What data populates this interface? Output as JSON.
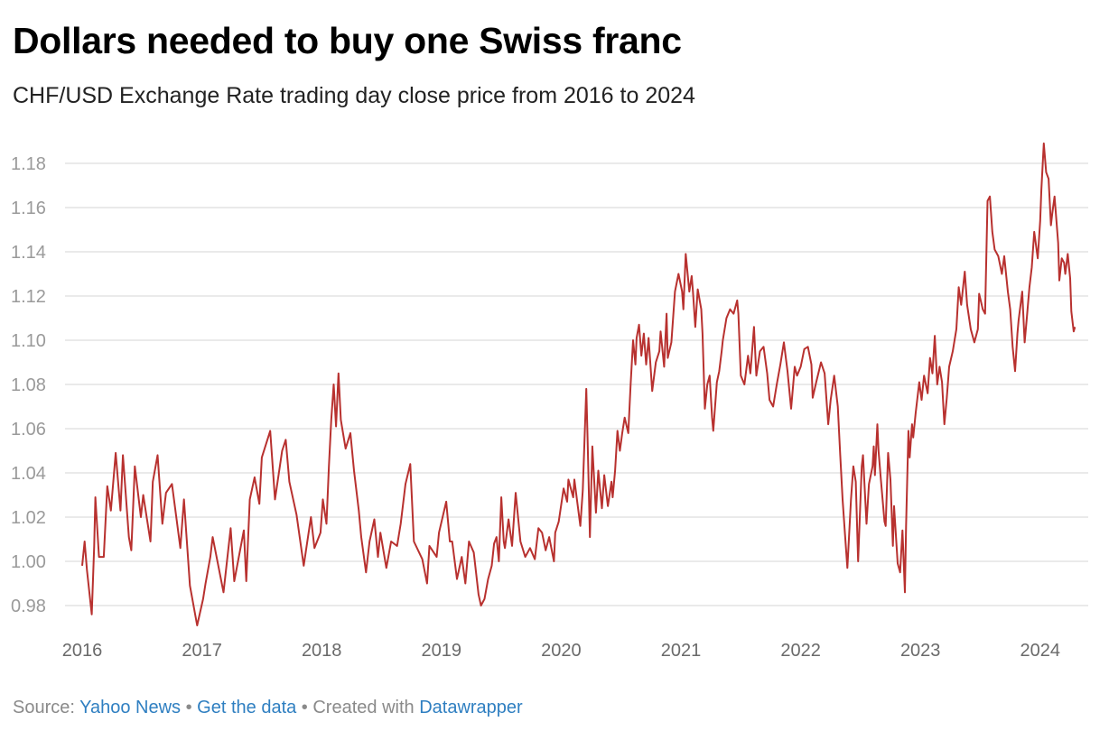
{
  "title": "Dollars needed to buy one Swiss franc",
  "subtitle": "CHF/USD Exchange Rate trading day close price from 2016 to 2024",
  "footer": {
    "source_label": "Source: ",
    "source_link": "Yahoo News",
    "sep1": " • ",
    "data_link": "Get the data",
    "sep2": " • Created with ",
    "tool_link": "Datawrapper"
  },
  "colors": {
    "line": "#b8312f",
    "grid": "#e3e3e3",
    "link": "#2f7fc1"
  },
  "chart_data": {
    "type": "line",
    "title": "Dollars needed to buy one Swiss franc",
    "subtitle": "CHF/USD Exchange Rate trading day close price from 2016 to 2024",
    "xlabel": "",
    "ylabel": "",
    "x_unit": "year",
    "xlim": [
      2016,
      2024.3
    ],
    "ylim": [
      0.97,
      1.19
    ],
    "yticks": [
      "0.98",
      "1.00",
      "1.02",
      "1.04",
      "1.06",
      "1.08",
      "1.10",
      "1.12",
      "1.14",
      "1.16",
      "1.18"
    ],
    "xticks": [
      "2016",
      "2017",
      "2018",
      "2019",
      "2020",
      "2021",
      "2022",
      "2023",
      "2024"
    ],
    "grid": "horizontal",
    "legend": "none",
    "points": [
      [
        2016.0,
        0.998
      ],
      [
        2016.02,
        1.009
      ],
      [
        2016.04,
        0.996
      ],
      [
        2016.08,
        0.976
      ],
      [
        2016.1,
        1.007
      ],
      [
        2016.11,
        1.029
      ],
      [
        2016.14,
        1.002
      ],
      [
        2016.18,
        1.002
      ],
      [
        2016.21,
        1.034
      ],
      [
        2016.24,
        1.023
      ],
      [
        2016.28,
        1.049
      ],
      [
        2016.32,
        1.023
      ],
      [
        2016.34,
        1.048
      ],
      [
        2016.39,
        1.011
      ],
      [
        2016.41,
        1.005
      ],
      [
        2016.44,
        1.043
      ],
      [
        2016.49,
        1.02
      ],
      [
        2016.51,
        1.03
      ],
      [
        2016.57,
        1.009
      ],
      [
        2016.59,
        1.036
      ],
      [
        2016.63,
        1.048
      ],
      [
        2016.67,
        1.017
      ],
      [
        2016.7,
        1.031
      ],
      [
        2016.75,
        1.035
      ],
      [
        2016.82,
        1.006
      ],
      [
        2016.85,
        1.028
      ],
      [
        2016.9,
        0.989
      ],
      [
        2016.96,
        0.971
      ],
      [
        2017.01,
        0.983
      ],
      [
        2017.03,
        0.99
      ],
      [
        2017.07,
        1.002
      ],
      [
        2017.09,
        1.011
      ],
      [
        2017.18,
        0.986
      ],
      [
        2017.24,
        1.015
      ],
      [
        2017.27,
        0.991
      ],
      [
        2017.35,
        1.014
      ],
      [
        2017.37,
        0.991
      ],
      [
        2017.4,
        1.028
      ],
      [
        2017.44,
        1.038
      ],
      [
        2017.48,
        1.026
      ],
      [
        2017.5,
        1.047
      ],
      [
        2017.57,
        1.059
      ],
      [
        2017.61,
        1.028
      ],
      [
        2017.67,
        1.05
      ],
      [
        2017.7,
        1.055
      ],
      [
        2017.73,
        1.036
      ],
      [
        2017.79,
        1.021
      ],
      [
        2017.85,
        0.998
      ],
      [
        2017.91,
        1.02
      ],
      [
        2017.94,
        1.006
      ],
      [
        2017.99,
        1.013
      ],
      [
        2018.01,
        1.028
      ],
      [
        2018.04,
        1.017
      ],
      [
        2018.06,
        1.043
      ],
      [
        2018.08,
        1.064
      ],
      [
        2018.1,
        1.08
      ],
      [
        2018.12,
        1.061
      ],
      [
        2018.14,
        1.085
      ],
      [
        2018.16,
        1.064
      ],
      [
        2018.2,
        1.051
      ],
      [
        2018.24,
        1.058
      ],
      [
        2018.27,
        1.041
      ],
      [
        2018.31,
        1.023
      ],
      [
        2018.33,
        1.011
      ],
      [
        2018.37,
        0.995
      ],
      [
        2018.4,
        1.009
      ],
      [
        2018.44,
        1.019
      ],
      [
        2018.47,
        1.002
      ],
      [
        2018.49,
        1.013
      ],
      [
        2018.54,
        0.997
      ],
      [
        2018.58,
        1.009
      ],
      [
        2018.63,
        1.007
      ],
      [
        2018.66,
        1.017
      ],
      [
        2018.7,
        1.035
      ],
      [
        2018.74,
        1.044
      ],
      [
        2018.77,
        1.009
      ],
      [
        2018.84,
        1.001
      ],
      [
        2018.88,
        0.99
      ],
      [
        2018.9,
        1.007
      ],
      [
        2018.96,
        1.002
      ],
      [
        2018.98,
        1.013
      ],
      [
        2019.04,
        1.027
      ],
      [
        2019.07,
        1.009
      ],
      [
        2019.09,
        1.009
      ],
      [
        2019.13,
        0.992
      ],
      [
        2019.17,
        1.002
      ],
      [
        2019.2,
        0.99
      ],
      [
        2019.23,
        1.009
      ],
      [
        2019.27,
        1.004
      ],
      [
        2019.31,
        0.985
      ],
      [
        2019.33,
        0.98
      ],
      [
        2019.36,
        0.983
      ],
      [
        2019.39,
        0.992
      ],
      [
        2019.42,
        0.998
      ],
      [
        2019.44,
        1.008
      ],
      [
        2019.46,
        1.011
      ],
      [
        2019.48,
        1.0
      ],
      [
        2019.5,
        1.029
      ],
      [
        2019.52,
        1.009
      ],
      [
        2019.53,
        1.006
      ],
      [
        2019.56,
        1.019
      ],
      [
        2019.59,
        1.007
      ],
      [
        2019.62,
        1.031
      ],
      [
        2019.66,
        1.009
      ],
      [
        2019.7,
        1.002
      ],
      [
        2019.74,
        1.006
      ],
      [
        2019.78,
        1.001
      ],
      [
        2019.81,
        1.015
      ],
      [
        2019.84,
        1.013
      ],
      [
        2019.87,
        1.005
      ],
      [
        2019.9,
        1.011
      ],
      [
        2019.94,
        1.0
      ],
      [
        2019.95,
        1.013
      ],
      [
        2019.98,
        1.018
      ],
      [
        2020.02,
        1.033
      ],
      [
        2020.05,
        1.027
      ],
      [
        2020.06,
        1.037
      ],
      [
        2020.1,
        1.029
      ],
      [
        2020.11,
        1.037
      ],
      [
        2020.16,
        1.016
      ],
      [
        2020.18,
        1.032
      ],
      [
        2020.21,
        1.078
      ],
      [
        2020.22,
        1.056
      ],
      [
        2020.24,
        1.011
      ],
      [
        2020.26,
        1.052
      ],
      [
        2020.29,
        1.022
      ],
      [
        2020.31,
        1.041
      ],
      [
        2020.34,
        1.024
      ],
      [
        2020.36,
        1.039
      ],
      [
        2020.39,
        1.025
      ],
      [
        2020.42,
        1.036
      ],
      [
        2020.43,
        1.029
      ],
      [
        2020.45,
        1.041
      ],
      [
        2020.47,
        1.059
      ],
      [
        2020.49,
        1.05
      ],
      [
        2020.51,
        1.058
      ],
      [
        2020.53,
        1.065
      ],
      [
        2020.56,
        1.058
      ],
      [
        2020.58,
        1.08
      ],
      [
        2020.6,
        1.1
      ],
      [
        2020.62,
        1.089
      ],
      [
        2020.63,
        1.101
      ],
      [
        2020.65,
        1.107
      ],
      [
        2020.67,
        1.093
      ],
      [
        2020.69,
        1.103
      ],
      [
        2020.71,
        1.089
      ],
      [
        2020.73,
        1.101
      ],
      [
        2020.76,
        1.077
      ],
      [
        2020.79,
        1.09
      ],
      [
        2020.82,
        1.095
      ],
      [
        2020.83,
        1.104
      ],
      [
        2020.86,
        1.088
      ],
      [
        2020.88,
        1.112
      ],
      [
        2020.89,
        1.092
      ],
      [
        2020.92,
        1.099
      ],
      [
        2020.95,
        1.122
      ],
      [
        2020.98,
        1.13
      ],
      [
        2021.01,
        1.122
      ],
      [
        2021.02,
        1.114
      ],
      [
        2021.04,
        1.139
      ],
      [
        2021.07,
        1.122
      ],
      [
        2021.09,
        1.129
      ],
      [
        2021.1,
        1.122
      ],
      [
        2021.12,
        1.106
      ],
      [
        2021.14,
        1.123
      ],
      [
        2021.17,
        1.114
      ],
      [
        2021.18,
        1.103
      ],
      [
        2021.2,
        1.069
      ],
      [
        2021.22,
        1.08
      ],
      [
        2021.24,
        1.084
      ],
      [
        2021.26,
        1.065
      ],
      [
        2021.27,
        1.059
      ],
      [
        2021.3,
        1.081
      ],
      [
        2021.32,
        1.086
      ],
      [
        2021.34,
        1.095
      ],
      [
        2021.35,
        1.1
      ],
      [
        2021.38,
        1.11
      ],
      [
        2021.41,
        1.114
      ],
      [
        2021.44,
        1.112
      ],
      [
        2021.47,
        1.118
      ],
      [
        2021.48,
        1.112
      ],
      [
        2021.5,
        1.084
      ],
      [
        2021.53,
        1.08
      ],
      [
        2021.56,
        1.093
      ],
      [
        2021.58,
        1.085
      ],
      [
        2021.61,
        1.106
      ],
      [
        2021.63,
        1.084
      ],
      [
        2021.66,
        1.095
      ],
      [
        2021.69,
        1.097
      ],
      [
        2021.72,
        1.085
      ],
      [
        2021.74,
        1.073
      ],
      [
        2021.77,
        1.07
      ],
      [
        2021.8,
        1.08
      ],
      [
        2021.83,
        1.089
      ],
      [
        2021.86,
        1.099
      ],
      [
        2021.89,
        1.086
      ],
      [
        2021.92,
        1.069
      ],
      [
        2021.95,
        1.088
      ],
      [
        2021.97,
        1.084
      ],
      [
        2022.0,
        1.088
      ],
      [
        2022.03,
        1.096
      ],
      [
        2022.06,
        1.097
      ],
      [
        2022.09,
        1.089
      ],
      [
        2022.1,
        1.074
      ],
      [
        2022.13,
        1.081
      ],
      [
        2022.17,
        1.09
      ],
      [
        2022.2,
        1.085
      ],
      [
        2022.23,
        1.062
      ],
      [
        2022.25,
        1.073
      ],
      [
        2022.28,
        1.084
      ],
      [
        2022.31,
        1.07
      ],
      [
        2022.33,
        1.048
      ],
      [
        2022.35,
        1.028
      ],
      [
        2022.37,
        1.012
      ],
      [
        2022.39,
        0.997
      ],
      [
        2022.42,
        1.028
      ],
      [
        2022.44,
        1.043
      ],
      [
        2022.46,
        1.036
      ],
      [
        2022.48,
        1.0
      ],
      [
        2022.51,
        1.043
      ],
      [
        2022.52,
        1.048
      ],
      [
        2022.55,
        1.017
      ],
      [
        2022.57,
        1.035
      ],
      [
        2022.6,
        1.043
      ],
      [
        2022.61,
        1.052
      ],
      [
        2022.62,
        1.039
      ],
      [
        2022.64,
        1.062
      ],
      [
        2022.65,
        1.05
      ],
      [
        2022.67,
        1.037
      ],
      [
        2022.7,
        1.018
      ],
      [
        2022.71,
        1.016
      ],
      [
        2022.73,
        1.049
      ],
      [
        2022.75,
        1.037
      ],
      [
        2022.77,
        1.007
      ],
      [
        2022.78,
        1.025
      ],
      [
        2022.81,
        0.999
      ],
      [
        2022.83,
        0.995
      ],
      [
        2022.85,
        1.014
      ],
      [
        2022.87,
        0.986
      ],
      [
        2022.88,
        1.016
      ],
      [
        2022.9,
        1.059
      ],
      [
        2022.91,
        1.047
      ],
      [
        2022.93,
        1.062
      ],
      [
        2022.94,
        1.056
      ],
      [
        2022.96,
        1.067
      ],
      [
        2022.99,
        1.081
      ],
      [
        2023.01,
        1.073
      ],
      [
        2023.03,
        1.084
      ],
      [
        2023.06,
        1.076
      ],
      [
        2023.08,
        1.092
      ],
      [
        2023.1,
        1.085
      ],
      [
        2023.12,
        1.102
      ],
      [
        2023.14,
        1.08
      ],
      [
        2023.16,
        1.088
      ],
      [
        2023.18,
        1.081
      ],
      [
        2023.2,
        1.062
      ],
      [
        2023.22,
        1.074
      ],
      [
        2023.24,
        1.088
      ],
      [
        2023.27,
        1.095
      ],
      [
        2023.3,
        1.105
      ],
      [
        2023.32,
        1.124
      ],
      [
        2023.34,
        1.116
      ],
      [
        2023.37,
        1.131
      ],
      [
        2023.39,
        1.116
      ],
      [
        2023.42,
        1.105
      ],
      [
        2023.45,
        1.099
      ],
      [
        2023.48,
        1.105
      ],
      [
        2023.49,
        1.121
      ],
      [
        2023.52,
        1.114
      ],
      [
        2023.54,
        1.112
      ],
      [
        2023.56,
        1.163
      ],
      [
        2023.58,
        1.165
      ],
      [
        2023.6,
        1.149
      ],
      [
        2023.62,
        1.141
      ],
      [
        2023.65,
        1.138
      ],
      [
        2023.68,
        1.13
      ],
      [
        2023.7,
        1.138
      ],
      [
        2023.73,
        1.122
      ],
      [
        2023.75,
        1.114
      ],
      [
        2023.77,
        1.097
      ],
      [
        2023.79,
        1.086
      ],
      [
        2023.81,
        1.103
      ],
      [
        2023.82,
        1.109
      ],
      [
        2023.85,
        1.122
      ],
      [
        2023.87,
        1.099
      ],
      [
        2023.89,
        1.111
      ],
      [
        2023.91,
        1.124
      ],
      [
        2023.93,
        1.133
      ],
      [
        2023.95,
        1.149
      ],
      [
        2023.98,
        1.137
      ],
      [
        2024.0,
        1.154
      ],
      [
        2024.01,
        1.168
      ],
      [
        2024.03,
        1.189
      ],
      [
        2024.05,
        1.176
      ],
      [
        2024.07,
        1.173
      ],
      [
        2024.09,
        1.152
      ],
      [
        2024.1,
        1.157
      ],
      [
        2024.12,
        1.165
      ],
      [
        2024.15,
        1.144
      ],
      [
        2024.16,
        1.127
      ],
      [
        2024.18,
        1.137
      ],
      [
        2024.2,
        1.135
      ],
      [
        2024.21,
        1.13
      ],
      [
        2024.23,
        1.139
      ],
      [
        2024.25,
        1.128
      ],
      [
        2024.26,
        1.113
      ],
      [
        2024.28,
        1.104
      ],
      [
        2024.29,
        1.106
      ]
    ]
  }
}
